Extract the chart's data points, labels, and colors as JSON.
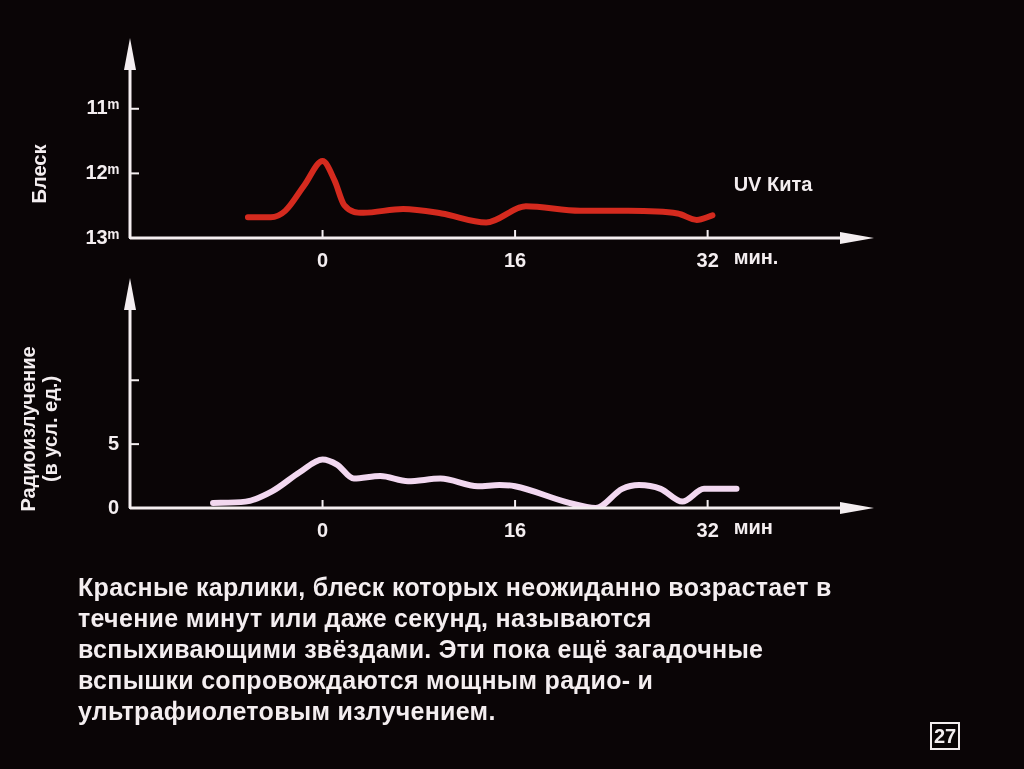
{
  "chart_data": [
    {
      "type": "line",
      "ylabel": "Блеск",
      "xlabel": "мин.",
      "xlim": [
        -16,
        43
      ],
      "xticks": [
        0,
        16,
        32
      ],
      "ylim": [
        13,
        10.4
      ],
      "yticks": [
        {
          "value": 11,
          "label": "11ᵐ"
        },
        {
          "value": 12,
          "label": "12ᵐ"
        },
        {
          "value": 13,
          "label": "13ᵐ"
        }
      ],
      "grid": false,
      "legend": false,
      "marker": "none",
      "line_style": "solid",
      "series": [
        {
          "name": "UV Кита",
          "color": "#d42a1e",
          "x": [
            -6.2,
            -4.3,
            -3.1,
            -1.5,
            0,
            1.0,
            1.8,
            3.4,
            6.7,
            9.9,
            13.6,
            16.9,
            21.4,
            25.4,
            29.5,
            31.1,
            32.4
          ],
          "values": [
            12.68,
            12.68,
            12.58,
            12.18,
            11.81,
            12.11,
            12.49,
            12.61,
            12.55,
            12.62,
            12.76,
            12.51,
            12.58,
            12.58,
            12.62,
            12.72,
            12.65
          ]
        }
      ]
    },
    {
      "type": "line",
      "ylabel": "Радиоизлучение\n(в усл. ед.)",
      "xlabel": "мин",
      "xlim": [
        -16,
        43
      ],
      "xticks": [
        0,
        16,
        32
      ],
      "ylim": [
        0,
        15.5
      ],
      "yticks": [
        0,
        5,
        {
          "value": 10,
          "label": null
        }
      ],
      "grid": false,
      "legend": false,
      "marker": "none",
      "line_style": "solid",
      "annotations": [
        "Красные карлики, блеск которых неожиданно возрастает в течение минут или даже секунд, называются вспыхивающими звёздами. Эти пока ещё загадочные вспышки сопровождаются мощным радио- и ультрафиолетовым излучением.",
        "27"
      ],
      "series": [
        {
          "color": "#f2d8f0",
          "x": [
            -9.1,
            -6.4,
            -4.2,
            -1.9,
            0,
            1.2,
            2.6,
            4.8,
            7.1,
            9.8,
            12.9,
            14.7,
            16.0,
            20.5,
            22.7,
            24.9,
            26.3,
            28.1,
            29.9,
            31.7,
            34.4
          ],
          "values": [
            0.4,
            0.5,
            1.3,
            2.8,
            3.8,
            3.4,
            2.3,
            2.5,
            2.1,
            2.3,
            1.7,
            1.8,
            1.7,
            0.4,
            0,
            1.5,
            1.8,
            1.5,
            0.5,
            1.5,
            1.5
          ]
        }
      ]
    }
  ]
}
